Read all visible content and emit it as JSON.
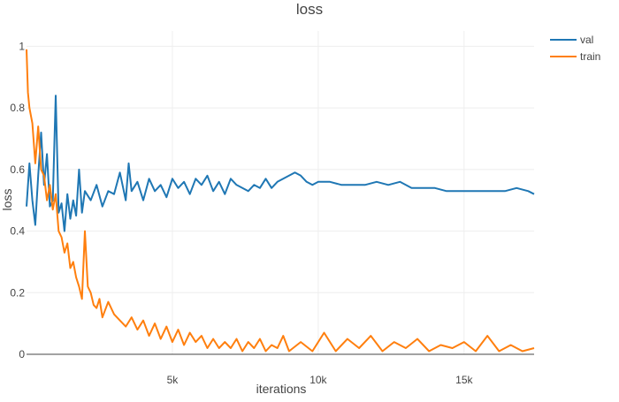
{
  "chart_data": {
    "type": "line",
    "title": "loss",
    "xlabel": "iterations",
    "ylabel": "loss",
    "xlim": [
      0,
      17400
    ],
    "ylim": [
      0,
      1.05
    ],
    "xticks": [
      {
        "value": 5000,
        "label": "5k"
      },
      {
        "value": 10000,
        "label": "10k"
      },
      {
        "value": 15000,
        "label": "15k"
      }
    ],
    "yticks": [
      {
        "value": 0,
        "label": "0"
      },
      {
        "value": 0.2,
        "label": "0.2"
      },
      {
        "value": 0.4,
        "label": "0.4"
      },
      {
        "value": 0.6,
        "label": "0.6"
      },
      {
        "value": 0.8,
        "label": "0.8"
      },
      {
        "value": 1,
        "label": "1"
      }
    ],
    "grid": true,
    "legend_position": "top-right",
    "series": [
      {
        "name": "val",
        "color": "#1f77b4",
        "x": [
          0,
          100,
          200,
          300,
          400,
          500,
          600,
          700,
          800,
          900,
          1000,
          1100,
          1200,
          1300,
          1400,
          1500,
          1600,
          1700,
          1800,
          1900,
          2000,
          2200,
          2400,
          2600,
          2800,
          3000,
          3200,
          3400,
          3500,
          3600,
          3800,
          4000,
          4200,
          4400,
          4600,
          4800,
          5000,
          5200,
          5400,
          5600,
          5800,
          6000,
          6200,
          6400,
          6600,
          6800,
          7000,
          7200,
          7400,
          7600,
          7800,
          8000,
          8200,
          8400,
          8600,
          8800,
          9000,
          9200,
          9400,
          9600,
          9800,
          10000,
          10400,
          10800,
          11200,
          11600,
          12000,
          12400,
          12800,
          13200,
          13600,
          14000,
          14400,
          14800,
          15200,
          15600,
          16000,
          16400,
          16800,
          17200,
          17400
        ],
        "y": [
          0.48,
          0.62,
          0.5,
          0.42,
          0.58,
          0.72,
          0.55,
          0.65,
          0.48,
          0.5,
          0.84,
          0.46,
          0.49,
          0.4,
          0.52,
          0.44,
          0.5,
          0.45,
          0.6,
          0.46,
          0.53,
          0.5,
          0.55,
          0.48,
          0.53,
          0.52,
          0.59,
          0.5,
          0.62,
          0.53,
          0.56,
          0.5,
          0.57,
          0.53,
          0.55,
          0.51,
          0.57,
          0.54,
          0.56,
          0.52,
          0.57,
          0.55,
          0.58,
          0.53,
          0.56,
          0.52,
          0.57,
          0.55,
          0.54,
          0.53,
          0.55,
          0.54,
          0.57,
          0.54,
          0.56,
          0.57,
          0.58,
          0.59,
          0.58,
          0.56,
          0.55,
          0.56,
          0.56,
          0.55,
          0.55,
          0.55,
          0.56,
          0.55,
          0.56,
          0.54,
          0.54,
          0.54,
          0.53,
          0.53,
          0.53,
          0.53,
          0.53,
          0.53,
          0.54,
          0.53,
          0.52
        ]
      },
      {
        "name": "train",
        "color": "#ff7f0e",
        "x": [
          0,
          50,
          100,
          200,
          300,
          400,
          500,
          600,
          700,
          800,
          900,
          1000,
          1100,
          1200,
          1300,
          1400,
          1500,
          1600,
          1700,
          1800,
          1900,
          2000,
          2100,
          2200,
          2300,
          2400,
          2500,
          2600,
          2800,
          3000,
          3200,
          3400,
          3600,
          3800,
          4000,
          4200,
          4400,
          4600,
          4800,
          5000,
          5200,
          5400,
          5600,
          5800,
          6000,
          6200,
          6400,
          6600,
          6800,
          7000,
          7200,
          7400,
          7600,
          7800,
          8000,
          8200,
          8400,
          8600,
          8800,
          9000,
          9400,
          9800,
          10200,
          10600,
          11000,
          11400,
          11800,
          12200,
          12600,
          13000,
          13400,
          13800,
          14200,
          14600,
          15000,
          15400,
          15800,
          16200,
          16600,
          17000,
          17400
        ],
        "y": [
          0.99,
          0.85,
          0.8,
          0.75,
          0.62,
          0.74,
          0.6,
          0.58,
          0.5,
          0.55,
          0.47,
          0.52,
          0.4,
          0.38,
          0.33,
          0.36,
          0.28,
          0.3,
          0.25,
          0.22,
          0.18,
          0.4,
          0.22,
          0.2,
          0.16,
          0.15,
          0.18,
          0.12,
          0.17,
          0.13,
          0.11,
          0.09,
          0.12,
          0.08,
          0.11,
          0.06,
          0.1,
          0.05,
          0.09,
          0.04,
          0.08,
          0.03,
          0.07,
          0.04,
          0.06,
          0.02,
          0.05,
          0.02,
          0.04,
          0.02,
          0.05,
          0.01,
          0.04,
          0.02,
          0.05,
          0.01,
          0.03,
          0.02,
          0.06,
          0.01,
          0.04,
          0.01,
          0.07,
          0.01,
          0.05,
          0.02,
          0.06,
          0.01,
          0.04,
          0.02,
          0.05,
          0.01,
          0.03,
          0.02,
          0.04,
          0.01,
          0.06,
          0.01,
          0.03,
          0.01,
          0.02
        ]
      }
    ]
  }
}
